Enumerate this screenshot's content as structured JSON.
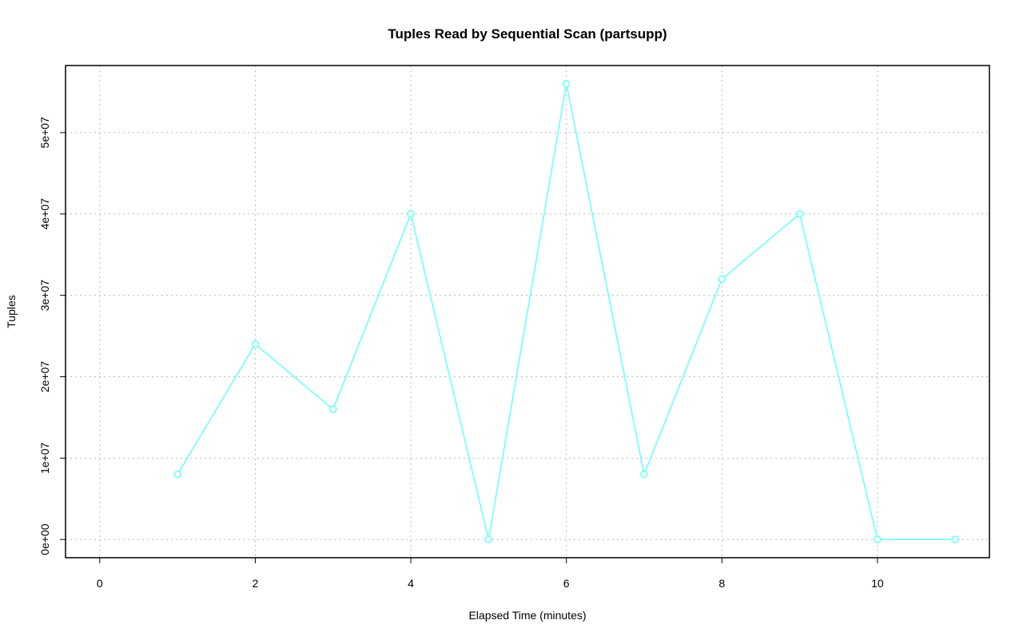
{
  "chart_data": {
    "type": "line",
    "title": "Tuples Read by Sequential Scan (partsupp)",
    "x_label": "Elapsed Time (minutes)",
    "y_label": "Tuples",
    "x": [
      1,
      2,
      3,
      4,
      5,
      6,
      7,
      8,
      9,
      10,
      11
    ],
    "series": [
      {
        "name": "partsupp",
        "color": "#66ffff",
        "values": [
          8000000,
          24000000,
          16000000,
          40000000,
          0,
          56000000,
          8000000,
          32000000,
          40000000,
          0,
          0
        ]
      }
    ],
    "xlim": [
      -0.44,
      11.44
    ],
    "xticks": [
      0,
      2,
      4,
      6,
      8,
      10
    ],
    "ylim": [
      -2240000,
      58240000
    ],
    "yticks": [
      {
        "value": 0,
        "label": "0e+00"
      },
      {
        "value": 10000000,
        "label": "1e+07"
      },
      {
        "value": 20000000,
        "label": "2e+07"
      },
      {
        "value": 30000000,
        "label": "3e+07"
      },
      {
        "value": 40000000,
        "label": "4e+07"
      },
      {
        "value": 50000000,
        "label": "5e+07"
      }
    ],
    "grid": true
  }
}
